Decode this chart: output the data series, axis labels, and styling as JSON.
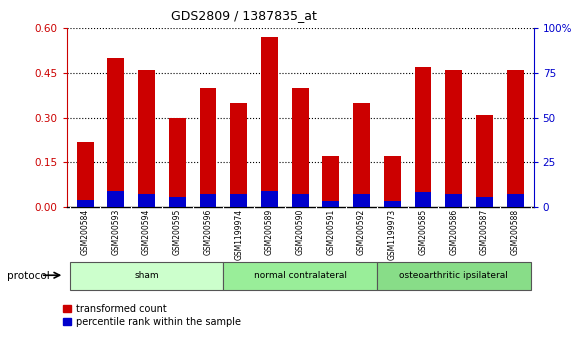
{
  "title": "GDS2809 / 1387835_at",
  "samples": [
    "GSM200584",
    "GSM200593",
    "GSM200594",
    "GSM200595",
    "GSM200596",
    "GSM1199974",
    "GSM200589",
    "GSM200590",
    "GSM200591",
    "GSM200592",
    "GSM1199973",
    "GSM200585",
    "GSM200586",
    "GSM200587",
    "GSM200588"
  ],
  "red_values": [
    0.22,
    0.5,
    0.46,
    0.3,
    0.4,
    0.35,
    0.57,
    0.4,
    0.17,
    0.35,
    0.17,
    0.47,
    0.46,
    0.31,
    0.46
  ],
  "blue_values": [
    0.025,
    0.055,
    0.045,
    0.035,
    0.045,
    0.045,
    0.055,
    0.045,
    0.02,
    0.045,
    0.02,
    0.05,
    0.045,
    0.035,
    0.045
  ],
  "groups": [
    {
      "label": "sham",
      "start": 0,
      "end": 5
    },
    {
      "label": "normal contralateral",
      "start": 5,
      "end": 10
    },
    {
      "label": "osteoarthritic ipsilateral",
      "start": 10,
      "end": 15
    }
  ],
  "group_colors": [
    "#ccffcc",
    "#99ee99",
    "#88dd88"
  ],
  "ylim_left": [
    0,
    0.6
  ],
  "ylim_right": [
    0,
    100
  ],
  "yticks_left": [
    0,
    0.15,
    0.3,
    0.45,
    0.6
  ],
  "yticks_right": [
    0,
    25,
    50,
    75,
    100
  ],
  "left_color": "#cc0000",
  "right_color": "#0000cc",
  "bar_color_red": "#cc0000",
  "bar_color_blue": "#0000cc",
  "bg_color": "#ffffff",
  "tick_label_bg": "#cccccc",
  "legend_red": "transformed count",
  "legend_blue": "percentile rank within the sample",
  "protocol_label": "protocol",
  "bar_width": 0.55
}
